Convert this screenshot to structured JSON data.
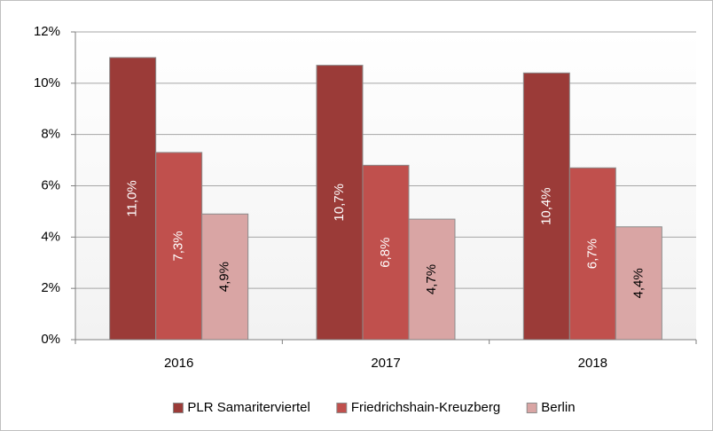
{
  "chart_data": {
    "type": "bar",
    "categories": [
      "2016",
      "2017",
      "2018"
    ],
    "series": [
      {
        "name": "PLR Samariterviertel",
        "color": "#9b3b38",
        "values": [
          11.0,
          10.7,
          10.4
        ],
        "value_labels": [
          "11,0%",
          "10,7%",
          "10,4%"
        ]
      },
      {
        "name": "Friedrichshain-Kreuzberg",
        "color": "#c0504d",
        "values": [
          7.3,
          6.8,
          6.7
        ],
        "value_labels": [
          "7,3%",
          "6,8%",
          "6,7%"
        ]
      },
      {
        "name": "Berlin",
        "color": "#d9a5a4",
        "values": [
          4.9,
          4.7,
          4.4
        ],
        "value_labels": [
          "4,9%",
          "4,7%",
          "4,4%"
        ]
      }
    ],
    "ylim": [
      0,
      12
    ],
    "yticks": [
      {
        "value": 0,
        "label": "0%"
      },
      {
        "value": 2,
        "label": "2%"
      },
      {
        "value": 4,
        "label": "4%"
      },
      {
        "value": 6,
        "label": "6%"
      },
      {
        "value": 8,
        "label": "8%"
      },
      {
        "value": 10,
        "label": "10%"
      },
      {
        "value": 12,
        "label": "12%"
      }
    ],
    "grid": true,
    "legend": "bottom"
  }
}
